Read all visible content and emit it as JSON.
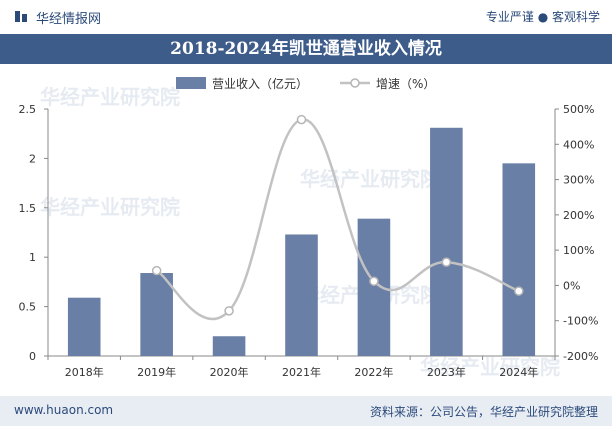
{
  "header": {
    "site_name": "华经情报网",
    "slogan": "专业严谨 ● 客观科学"
  },
  "footer": {
    "url": "www.huaon.com",
    "source": "资料来源：公司公告，华经产业研究院整理"
  },
  "watermark": "华经产业研究院",
  "colors": {
    "bar": "#6a7fa6",
    "line": "#c2c2c2",
    "title_bg": "#3d5c8a"
  },
  "chart_data": {
    "type": "bar",
    "title": "2018-2024年凯世通营业收入情况",
    "categories": [
      "2018年",
      "2019年",
      "2020年",
      "2021年",
      "2022年",
      "2023年",
      "2024年"
    ],
    "legend_position": "top-center",
    "series": [
      {
        "name": "营业收入（亿元）",
        "type": "bar",
        "axis": "left",
        "values": [
          0.59,
          0.84,
          0.2,
          1.23,
          1.39,
          2.31,
          1.95
        ]
      },
      {
        "name": "增速（%）",
        "type": "line",
        "axis": "right",
        "values": [
          null,
          42,
          -72,
          470,
          12,
          66,
          -16
        ]
      }
    ],
    "y_left": {
      "min": 0,
      "max": 2.5,
      "ticks": [
        "0",
        "0.5",
        "1",
        "1.5",
        "2",
        "2.5"
      ]
    },
    "y_right": {
      "min": -200,
      "max": 500,
      "ticks": [
        "-200%",
        "-100%",
        "0%",
        "100%",
        "200%",
        "300%",
        "400%",
        "500%"
      ]
    }
  }
}
